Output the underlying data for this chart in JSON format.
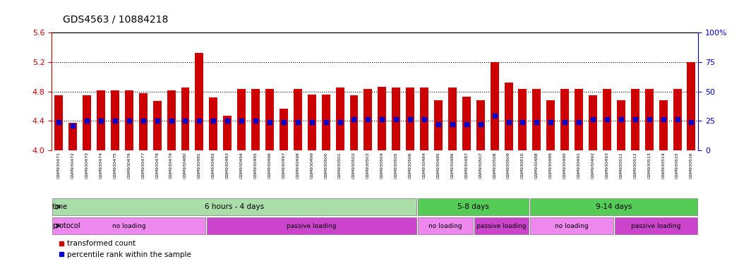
{
  "title": "GDS4563 / 10884218",
  "samples": [
    "GSM930471",
    "GSM930472",
    "GSM930473",
    "GSM930474",
    "GSM930475",
    "GSM930476",
    "GSM930477",
    "GSM930478",
    "GSM930479",
    "GSM930480",
    "GSM930481",
    "GSM930482",
    "GSM930483",
    "GSM930494",
    "GSM930495",
    "GSM930496",
    "GSM930497",
    "GSM930498",
    "GSM930499",
    "GSM930500",
    "GSM930501",
    "GSM930502",
    "GSM930503",
    "GSM930504",
    "GSM930505",
    "GSM930506",
    "GSM930484",
    "GSM930485",
    "GSM930486",
    "GSM930487",
    "GSM930507",
    "GSM930508",
    "GSM930509",
    "GSM930510",
    "GSM930488",
    "GSM930489",
    "GSM930490",
    "GSM930491",
    "GSM930492",
    "GSM930493",
    "GSM930511",
    "GSM930512",
    "GSM930513",
    "GSM930514",
    "GSM930515",
    "GSM930516"
  ],
  "bar_values": [
    4.75,
    4.37,
    4.75,
    4.82,
    4.82,
    4.82,
    4.78,
    4.67,
    4.82,
    4.85,
    5.32,
    4.72,
    4.47,
    4.83,
    4.83,
    4.83,
    4.57,
    4.83,
    4.76,
    4.76,
    4.85,
    4.75,
    4.83,
    4.86,
    4.85,
    4.85,
    4.85,
    4.68,
    4.85,
    4.73,
    4.68,
    5.2,
    4.92,
    4.83,
    4.83,
    4.68,
    4.83,
    4.83,
    4.75,
    4.83,
    4.68,
    4.83,
    4.83,
    4.68,
    4.83,
    5.2
  ],
  "percentile_values": [
    4.38,
    4.34,
    4.4,
    4.4,
    4.4,
    4.4,
    4.4,
    4.4,
    4.4,
    4.4,
    4.4,
    4.4,
    4.4,
    4.4,
    4.4,
    4.38,
    4.38,
    4.38,
    4.38,
    4.38,
    4.38,
    4.42,
    4.42,
    4.42,
    4.42,
    4.42,
    4.42,
    4.36,
    4.36,
    4.36,
    4.36,
    4.47,
    4.38,
    4.38,
    4.38,
    4.38,
    4.38,
    4.38,
    4.42,
    4.42,
    4.42,
    4.42,
    4.42,
    4.42,
    4.42,
    4.38
  ],
  "ylim_left": [
    4.0,
    5.6
  ],
  "ylim_right": [
    0,
    100
  ],
  "yticks_left": [
    4.0,
    4.4,
    4.8,
    5.2,
    5.6
  ],
  "yticks_right": [
    0,
    25,
    50,
    75,
    100
  ],
  "ytick_labels_right": [
    "0",
    "25",
    "50",
    "75",
    "100%"
  ],
  "bar_color": "#cc0000",
  "dot_color": "#0000cc",
  "bar_bottom": 4.0,
  "grid_dotted_at": [
    4.4,
    4.8,
    5.2
  ],
  "time_groups": [
    {
      "label": "6 hours - 4 days",
      "start": 0,
      "end": 25,
      "color": "#aaddaa"
    },
    {
      "label": "5-8 days",
      "start": 26,
      "end": 33,
      "color": "#55cc55"
    },
    {
      "label": "9-14 days",
      "start": 34,
      "end": 45,
      "color": "#55cc55"
    }
  ],
  "protocol_groups": [
    {
      "label": "no loading",
      "start": 0,
      "end": 10,
      "color": "#ee88ee"
    },
    {
      "label": "passive loading",
      "start": 11,
      "end": 25,
      "color": "#cc44cc"
    },
    {
      "label": "no loading",
      "start": 26,
      "end": 29,
      "color": "#ee88ee"
    },
    {
      "label": "passive loading",
      "start": 30,
      "end": 33,
      "color": "#cc44cc"
    },
    {
      "label": "no loading",
      "start": 34,
      "end": 39,
      "color": "#ee88ee"
    },
    {
      "label": "passive loading",
      "start": 40,
      "end": 45,
      "color": "#cc44cc"
    }
  ],
  "legend_items": [
    {
      "label": "transformed count",
      "color": "#cc0000"
    },
    {
      "label": "percentile rank within the sample",
      "color": "#0000cc"
    }
  ],
  "background_color": "#ffffff",
  "axis_color_left": "#cc0000",
  "axis_color_right": "#0000cc",
  "xlabels_bg": "#cccccc"
}
